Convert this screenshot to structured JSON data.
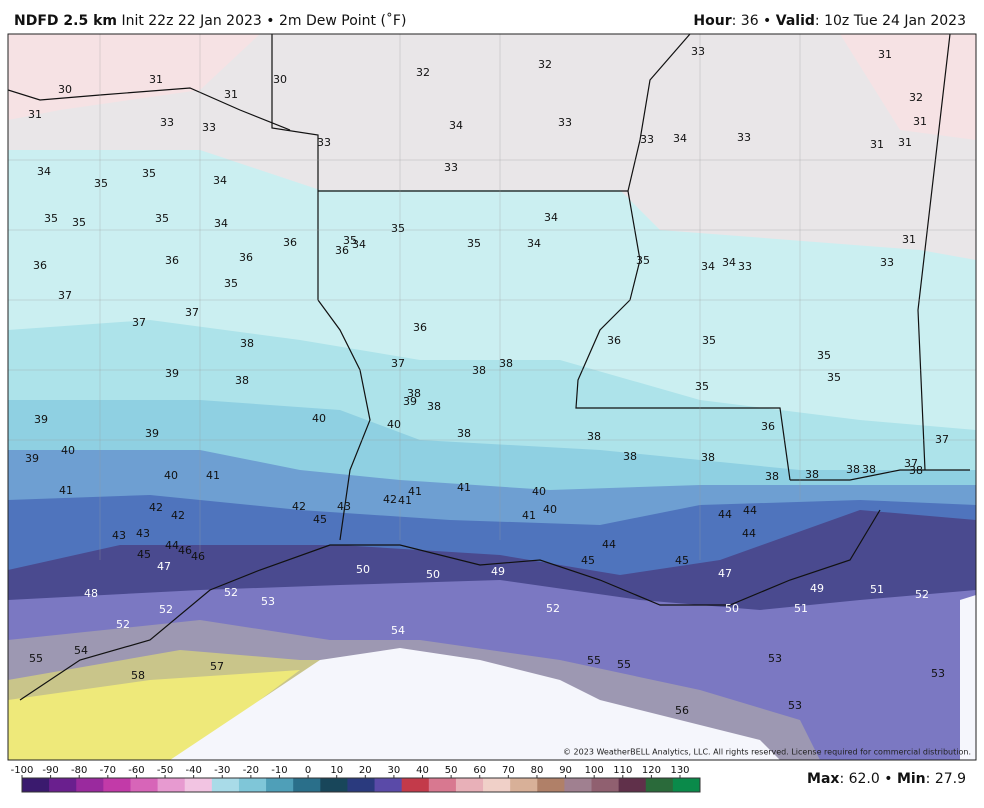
{
  "header": {
    "model": "NDFD 2.5 km",
    "init": "Init 22z 22 Jan 2023 • 2m Dew Point (˚F)",
    "hour_label": "Hour",
    "hour_value": ": 36 •",
    "valid_label": "Valid",
    "valid_value": ": 10z Tue 24 Jan 2023"
  },
  "map": {
    "station_values": [
      31,
      30,
      31,
      30,
      31,
      32,
      32,
      33,
      31,
      32,
      31,
      33,
      33,
      34,
      33,
      33,
      33,
      34,
      33,
      31,
      31,
      34,
      35,
      35,
      34,
      33,
      35,
      35,
      35,
      34,
      34,
      35,
      35,
      34,
      36,
      36,
      35,
      34,
      31,
      36,
      36,
      36,
      35,
      34,
      34,
      33,
      33,
      35,
      37,
      37,
      37,
      36,
      38,
      36,
      35,
      37,
      38,
      38,
      35,
      39,
      38,
      35,
      35,
      38,
      39,
      38,
      39,
      40,
      40,
      38,
      39,
      36,
      38,
      37,
      40,
      39,
      38,
      38,
      37,
      38,
      38,
      38,
      40,
      41,
      38,
      38,
      41,
      41,
      41,
      40,
      42,
      41,
      42,
      42,
      43,
      40,
      41,
      44,
      44,
      42,
      45,
      43,
      43,
      44,
      44,
      44,
      46,
      46,
      45,
      45,
      45,
      47,
      50,
      50,
      49,
      47,
      49,
      51,
      52,
      48,
      52,
      53,
      52,
      52,
      50,
      51,
      52,
      54,
      55,
      54,
      55,
      55,
      53,
      57,
      58,
      53,
      56,
      53
    ],
    "copyright": "© 2023 WeatherBELL Analytics, LLC. All rights reserved. License required for commercial distribution."
  },
  "colorbar": {
    "ticks": [
      -100,
      -90,
      -80,
      -70,
      -60,
      -50,
      -40,
      -30,
      -20,
      -10,
      0,
      10,
      20,
      30,
      40,
      50,
      60,
      70,
      80,
      90,
      100,
      110,
      120,
      130
    ]
  },
  "footer": {
    "max_label": "Max",
    "max_value": ": 62.0 •",
    "min_label": "Min",
    "min_value": ": 27.9"
  }
}
